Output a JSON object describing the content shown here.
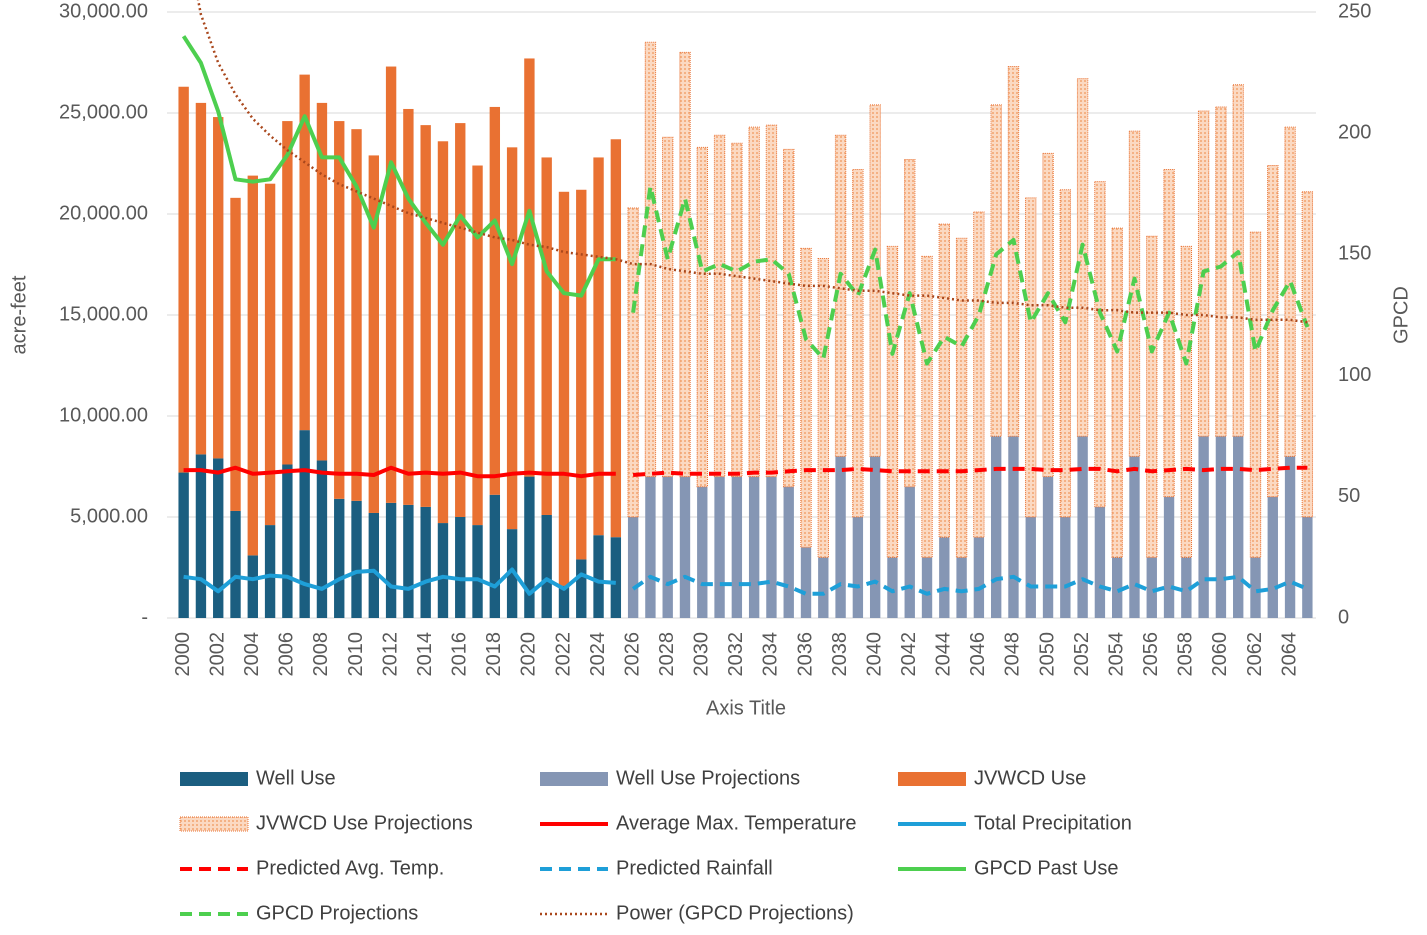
{
  "chart_data": {
    "type": "combo",
    "x_title": "Axis Title",
    "y_title": "acre-feet",
    "y2_title": "GPCD",
    "categories": [
      "2000",
      null,
      "2002",
      null,
      "2004",
      null,
      "2006",
      null,
      "2008",
      null,
      "2010",
      null,
      "2012",
      null,
      "2014",
      null,
      "2016",
      null,
      "2018",
      null,
      "2020",
      null,
      "2022",
      null,
      "2024",
      null,
      "2026",
      null,
      "2028",
      null,
      "2030",
      null,
      "2032",
      null,
      "2034",
      null,
      "2036",
      null,
      "2038",
      null,
      "2040",
      null,
      "2042",
      null,
      "2044",
      null,
      "2046",
      null,
      "2048",
      null,
      "2050",
      null,
      "2052",
      null,
      "2054",
      null,
      "2056",
      null,
      "2058",
      null,
      "2060",
      null,
      "2062",
      null,
      "2064",
      null
    ],
    "ylim": [
      0,
      30000
    ],
    "yticks": [
      {
        "value": 0,
        "label": "-"
      },
      {
        "value": 5000,
        "label": "5,000.00"
      },
      {
        "value": 10000,
        "label": "10,000.00"
      },
      {
        "value": 15000,
        "label": "15,000.00"
      },
      {
        "value": 20000,
        "label": "20,000.00"
      },
      {
        "value": 25000,
        "label": "25,000.00"
      },
      {
        "value": 30000,
        "label": "30,000.00"
      }
    ],
    "y2lim": [
      0,
      250
    ],
    "y2ticks": [
      0,
      50,
      100,
      150,
      200,
      250
    ],
    "grid": true,
    "stacked": true,
    "legend": "bottom",
    "series": [
      {
        "name": "Well Use",
        "kind": "bar",
        "color": "#1b5e80",
        "values": [
          7200,
          8100,
          7900,
          5300,
          3100,
          4600,
          7600,
          9300,
          7800,
          5900,
          5800,
          5200,
          5700,
          5600,
          5500,
          4700,
          5000,
          4600,
          6100,
          4400,
          7000,
          5100,
          1600,
          2900,
          4100,
          4000,
          null,
          null,
          null,
          null,
          null,
          null,
          null,
          null,
          null,
          null,
          null,
          null,
          null,
          null,
          null,
          null,
          null,
          null,
          null,
          null,
          null,
          null,
          null,
          null,
          null,
          null,
          null,
          null,
          null,
          null,
          null,
          null,
          null,
          null,
          null,
          null,
          null,
          null,
          null,
          null
        ]
      },
      {
        "name": "Well Use Projections",
        "kind": "bar",
        "color": "#8596b4",
        "values": [
          null,
          null,
          null,
          null,
          null,
          null,
          null,
          null,
          null,
          null,
          null,
          null,
          null,
          null,
          null,
          null,
          null,
          null,
          null,
          null,
          null,
          null,
          null,
          null,
          null,
          null,
          5000,
          7000,
          7000,
          7000,
          6500,
          7000,
          7000,
          7000,
          7000,
          6500,
          3500,
          3000,
          8000,
          5000,
          8000,
          3000,
          6500,
          3000,
          4000,
          3000,
          4000,
          9000,
          9000,
          5000,
          7000,
          5000,
          9000,
          5500,
          3000,
          8000,
          3000,
          6000,
          3000,
          9000,
          9000,
          9000,
          3000,
          6000,
          8000,
          5000
        ]
      },
      {
        "name": "JVWCD Use",
        "kind": "bar",
        "color": "#e97132",
        "values": [
          19100,
          17400,
          16900,
          15500,
          18800,
          16900,
          17000,
          17600,
          17700,
          18700,
          18400,
          17700,
          21600,
          19600,
          18900,
          18900,
          19500,
          17800,
          19200,
          18900,
          20700,
          17700,
          19500,
          18300,
          18700,
          19700,
          null,
          null,
          null,
          null,
          null,
          null,
          null,
          null,
          null,
          null,
          null,
          null,
          null,
          null,
          null,
          null,
          null,
          null,
          null,
          null,
          null,
          null,
          null,
          null,
          null,
          null,
          null,
          null,
          null,
          null,
          null,
          null,
          null,
          null,
          null,
          null,
          null,
          null,
          null,
          null
        ]
      },
      {
        "name": "JVWCD Use Projections",
        "kind": "hatched-bar",
        "color": "#e97132",
        "values": [
          null,
          null,
          null,
          null,
          null,
          null,
          null,
          null,
          null,
          null,
          null,
          null,
          null,
          null,
          null,
          null,
          null,
          null,
          null,
          null,
          null,
          null,
          null,
          null,
          null,
          null,
          15300,
          21500,
          16800,
          21000,
          16800,
          16900,
          16500,
          17300,
          17400,
          16700,
          14800,
          14800,
          15900,
          17200,
          17400,
          15400,
          16200,
          14900,
          15500,
          15800,
          16100,
          16400,
          18300,
          15800,
          16000,
          16200,
          17700,
          16100,
          16300,
          16100,
          15900,
          16200,
          15400,
          16100,
          16300,
          17400,
          16100,
          16400,
          16300,
          16100
        ]
      },
      {
        "name": "Average Max. Temperature",
        "kind": "line",
        "dash": "solid",
        "axis": "y2",
        "color": "#ff0000",
        "values": [
          61,
          61,
          60,
          62,
          59.5,
          60,
          60.5,
          61,
          60,
          59.5,
          59.5,
          59,
          62,
          59.5,
          60,
          59.5,
          60,
          58.5,
          58.5,
          59.5,
          60,
          59.5,
          59.5,
          58.5,
          59.5,
          59.5,
          null,
          null,
          null,
          null,
          null,
          null,
          null,
          null,
          null,
          null,
          null,
          null,
          null,
          null,
          null,
          null,
          null,
          null,
          null,
          null,
          null,
          null,
          null,
          null,
          null,
          null,
          null,
          null,
          null,
          null,
          null,
          null,
          null,
          null,
          null,
          null,
          null,
          null,
          null,
          null
        ]
      },
      {
        "name": "Total Precipitation",
        "kind": "line",
        "dash": "solid",
        "axis": "y2",
        "color": "#1e9fd8",
        "values": [
          17,
          16,
          11,
          17,
          16,
          17.5,
          17,
          14,
          12,
          16,
          19,
          19.5,
          13,
          12,
          15,
          17,
          16,
          16,
          13,
          20,
          10,
          16,
          12,
          18,
          15,
          14.5,
          null,
          null,
          null,
          null,
          null,
          null,
          null,
          null,
          null,
          null,
          null,
          null,
          null,
          null,
          null,
          null,
          null,
          null,
          null,
          null,
          null,
          null,
          null,
          null,
          null,
          null,
          null,
          null,
          null,
          null,
          null,
          null,
          null,
          null,
          null,
          null,
          null,
          null,
          null,
          null
        ]
      },
      {
        "name": "Predicted Avg. Temp.",
        "kind": "line",
        "dash": "dash",
        "axis": "y2",
        "color": "#ff0000",
        "values": [
          null,
          null,
          null,
          null,
          null,
          null,
          null,
          null,
          null,
          null,
          null,
          null,
          null,
          null,
          null,
          null,
          null,
          null,
          null,
          null,
          null,
          null,
          null,
          null,
          null,
          null,
          59,
          59.5,
          60,
          59.5,
          59.5,
          59.5,
          59.5,
          60,
          60,
          60.5,
          61,
          61,
          61,
          61.5,
          61,
          60.5,
          60.5,
          60.5,
          60.5,
          60.5,
          61,
          61.5,
          61.5,
          61.5,
          61,
          61,
          61.5,
          61.5,
          60.5,
          61.5,
          60.5,
          61,
          61.5,
          61,
          61.5,
          61.5,
          61,
          61.5,
          62,
          62
        ]
      },
      {
        "name": "Predicted Rainfall",
        "kind": "line",
        "dash": "dash",
        "axis": "y2",
        "color": "#1e9fd8",
        "values": [
          null,
          null,
          null,
          null,
          null,
          null,
          null,
          null,
          null,
          null,
          null,
          null,
          null,
          null,
          null,
          null,
          null,
          null,
          null,
          null,
          null,
          null,
          null,
          null,
          null,
          null,
          12,
          17,
          14,
          17,
          14,
          14,
          14,
          14,
          15,
          13,
          10,
          10,
          14,
          13,
          15,
          11,
          13,
          10,
          12,
          11,
          12,
          16,
          17,
          13,
          13,
          13,
          16,
          13,
          11,
          14,
          11,
          13,
          11,
          16,
          16,
          17,
          11,
          12,
          15,
          12
        ]
      },
      {
        "name": "GPCD Past Use",
        "kind": "line",
        "dash": "solid",
        "axis": "y2",
        "color": "#4dcf4f",
        "values": [
          240,
          229,
          209,
          181,
          180,
          181,
          191,
          207,
          190,
          190,
          178,
          161,
          188,
          173,
          163,
          154,
          166,
          157,
          164,
          146,
          168,
          143,
          134,
          133,
          148,
          148,
          null,
          null,
          null,
          null,
          null,
          null,
          null,
          null,
          null,
          null,
          null,
          null,
          null,
          null,
          null,
          null,
          null,
          null,
          null,
          null,
          null,
          null,
          null,
          null,
          null,
          null,
          null,
          null,
          null,
          null,
          null,
          null,
          null,
          null,
          null,
          null,
          null,
          null,
          null,
          null
        ]
      },
      {
        "name": "GPCD Projections",
        "kind": "line",
        "dash": "dash",
        "axis": "y2",
        "color": "#4dcf4f",
        "values": [
          null,
          null,
          null,
          null,
          null,
          null,
          null,
          null,
          null,
          null,
          null,
          null,
          null,
          null,
          null,
          null,
          null,
          null,
          null,
          null,
          null,
          null,
          null,
          null,
          null,
          null,
          126,
          178,
          148,
          173,
          143,
          146,
          143,
          147,
          148,
          142,
          115,
          107,
          142,
          133,
          152,
          109,
          134,
          105,
          116,
          112,
          125,
          150,
          156,
          122,
          134,
          122,
          154,
          126,
          110,
          140,
          110,
          126,
          105,
          143,
          145,
          151,
          110,
          127,
          139,
          120
        ]
      },
      {
        "name": "Power (GPCD Projections)",
        "kind": "line",
        "dash": "dot",
        "axis": "y2",
        "color": "#a9471c",
        "values": [
          286,
          249,
          229,
          216,
          206,
          199,
          193,
          188,
          183,
          179,
          176,
          173,
          170,
          167,
          165,
          163,
          161,
          159,
          157,
          156,
          154,
          153,
          151,
          150,
          149,
          148,
          146,
          146,
          144,
          143,
          142,
          142,
          141,
          140,
          139,
          138,
          137,
          137,
          136,
          135,
          135,
          134,
          133,
          133,
          132,
          131,
          131,
          130,
          130,
          129,
          129,
          128,
          128,
          127,
          127,
          126,
          126,
          126,
          125,
          125,
          124,
          124,
          123,
          123,
          123,
          122
        ]
      }
    ]
  }
}
